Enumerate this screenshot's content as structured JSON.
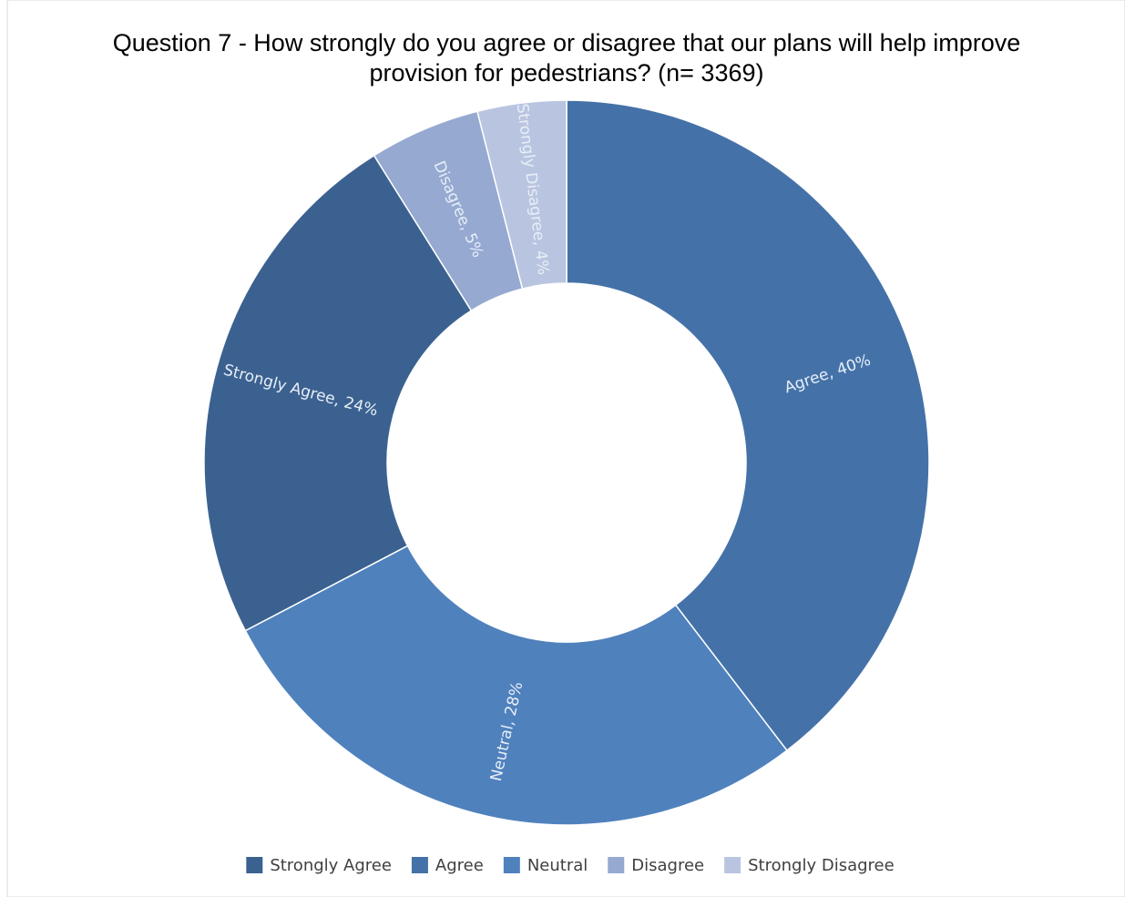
{
  "chart_data": {
    "type": "donut",
    "title": [
      "Question 7 - How strongly do you agree or disagree that our plans will help improve",
      "provision for pedestrians? (n= 3369)"
    ],
    "categories": [
      "Agree",
      "Neutral",
      "Strongly Agree",
      "Disagree",
      "Strongly Disagree"
    ],
    "values": [
      40,
      28,
      24,
      5,
      4
    ],
    "value_labels": [
      "Agree, 40%",
      "Neutral, 28%",
      "Strongly Agree, 24%",
      "Disagree, 5%",
      "Strongly Disagree, 4%"
    ],
    "colors": [
      "#4472a8",
      "#4f81bd",
      "#3b6190",
      "#95a9d1",
      "#b9c5e0"
    ],
    "legend": "bottom"
  }
}
